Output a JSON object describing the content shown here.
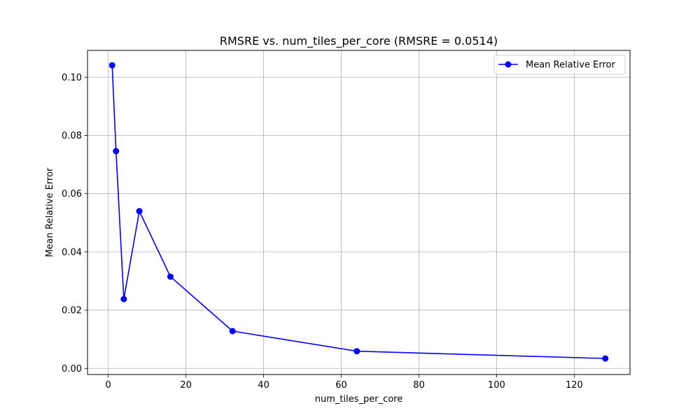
{
  "chart_data": {
    "type": "line",
    "title": "RMSRE vs. num_tiles_per_core (RMSRE = 0.0514)",
    "xlabel": "num_tiles_per_core",
    "ylabel": "Mean Relative Error",
    "xlim": [
      -5.35,
      134.35
    ],
    "ylim": [
      -0.0021,
      0.1092
    ],
    "xticks": [
      0,
      20,
      40,
      60,
      80,
      100,
      120
    ],
    "xtick_labels": [
      "0",
      "20",
      "40",
      "60",
      "80",
      "100",
      "120"
    ],
    "yticks": [
      0.0,
      0.02,
      0.04,
      0.06,
      0.08,
      0.1
    ],
    "ytick_labels": [
      "0.00",
      "0.02",
      "0.04",
      "0.06",
      "0.08",
      "0.10"
    ],
    "grid": true,
    "legend_position": "top-right",
    "series": [
      {
        "name": "Mean Relative Error",
        "color": "#0000ff",
        "marker": "circle",
        "x": [
          1,
          2,
          4,
          8,
          16,
          32,
          64,
          128
        ],
        "y": [
          0.1041,
          0.0746,
          0.0238,
          0.054,
          0.0315,
          0.0128,
          0.0059,
          0.0034
        ]
      }
    ]
  }
}
